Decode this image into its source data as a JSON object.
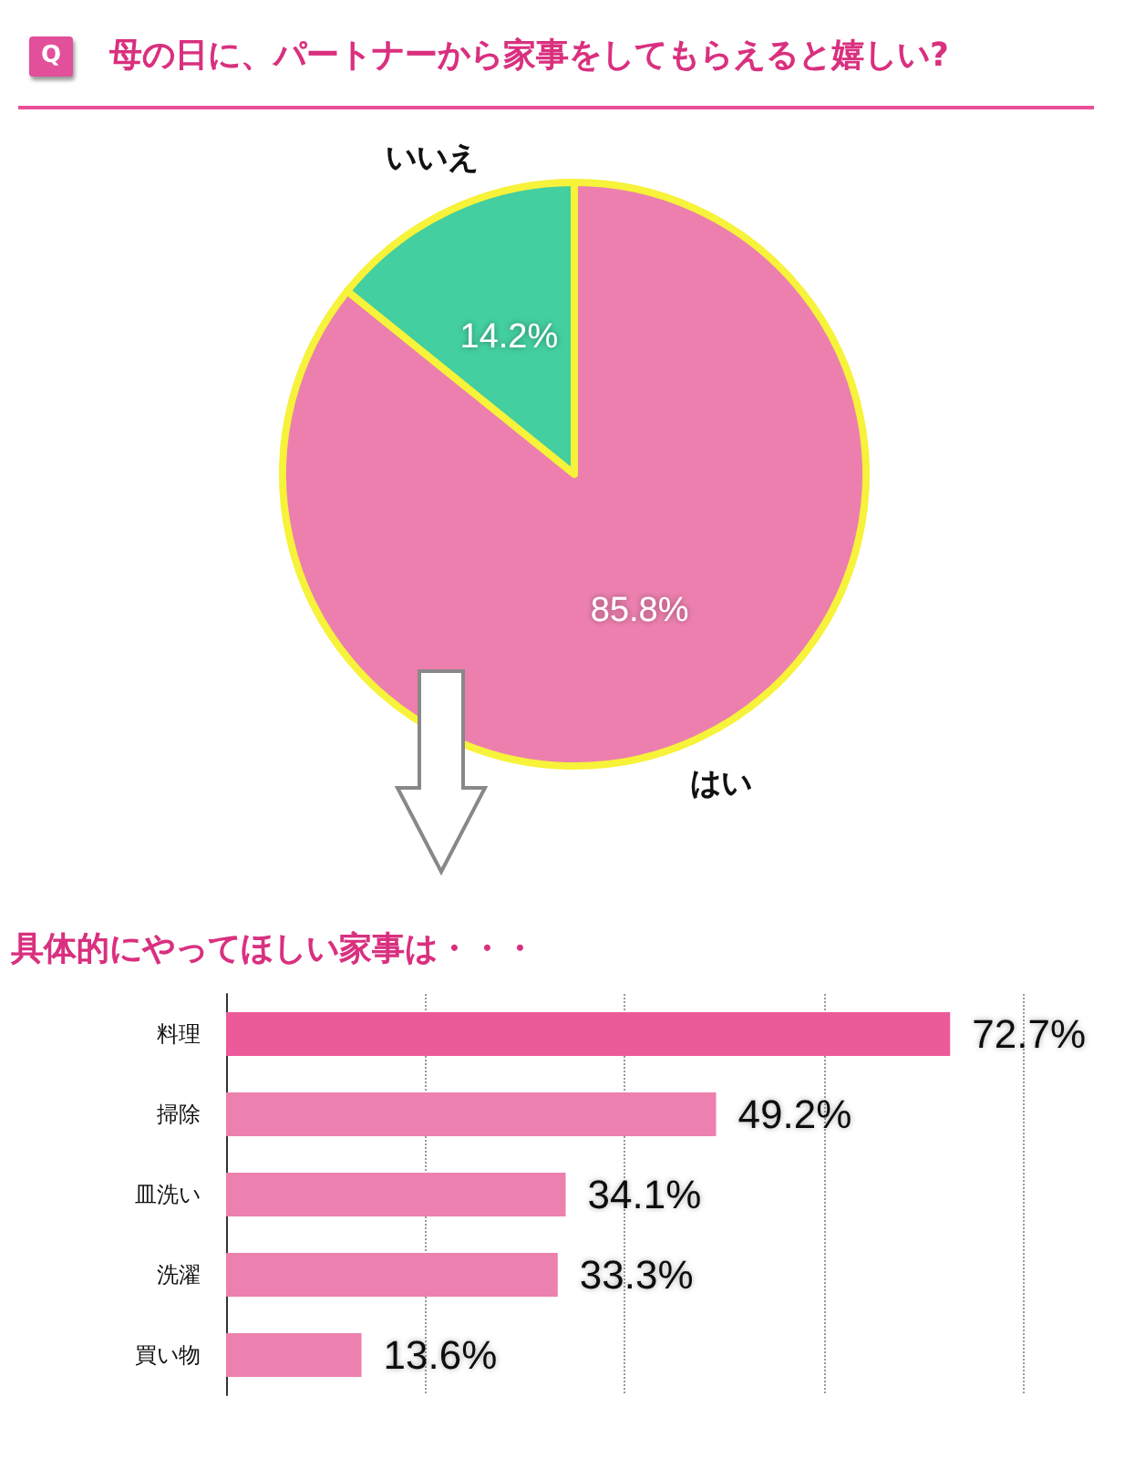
{
  "chart_data": [
    {
      "type": "pie",
      "title": "母の日に、パートナーから家事をしてもらえると嬉しい?",
      "annotations": [
        "Q"
      ],
      "categories": [
        "はい",
        "いいえ"
      ],
      "values": [
        85.8,
        14.2
      ],
      "colors": [
        "#ec7fae",
        "#43cf9f"
      ],
      "value_labels": [
        "85.8%",
        "14.2%"
      ],
      "legend": false
    },
    {
      "type": "bar",
      "orientation": "horizontal",
      "title": "具体的にやってほしい家事は・・・",
      "categories": [
        "料理",
        "掃除",
        "皿洗い",
        "洗濯",
        "買い物"
      ],
      "values": [
        72.7,
        49.2,
        34.1,
        33.3,
        13.6
      ],
      "colors": [
        "#ec5a9a",
        "#ec80ae",
        "#ec80ae",
        "#ec80ae",
        "#ec80ae"
      ],
      "value_labels": [
        "72.7%",
        "49.2%",
        "34.1%",
        "33.3%",
        "13.6%"
      ],
      "xlim": [
        0,
        80
      ],
      "xticks": [
        {
          "value": 0,
          "label": null
        },
        {
          "value": 20,
          "label": null
        },
        {
          "value": 40,
          "label": null
        },
        {
          "value": 60,
          "label": null
        },
        {
          "value": 80,
          "label": null
        }
      ],
      "grid": "x",
      "tick_labels": "y",
      "legend": false
    }
  ]
}
